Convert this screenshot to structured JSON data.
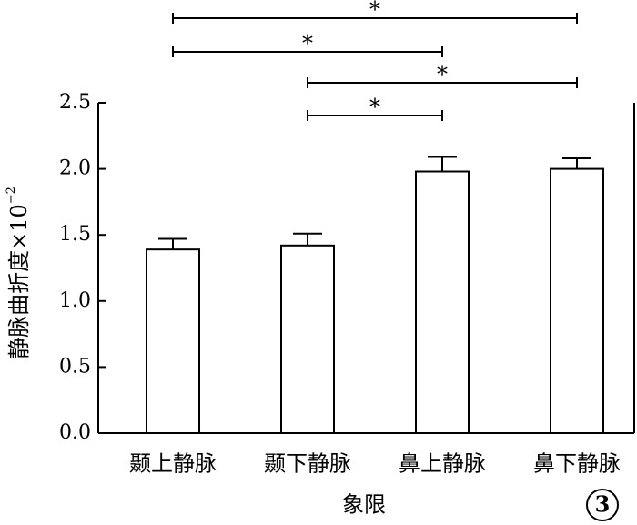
{
  "chart_data": {
    "type": "bar",
    "categories": [
      "颞上静脉",
      "颞下静脉",
      "鼻上静脉",
      "鼻下静脉"
    ],
    "values": [
      1.39,
      1.42,
      1.98,
      2.0
    ],
    "errors": [
      0.08,
      0.09,
      0.11,
      0.08
    ],
    "color": "#ffffff",
    "xlabel": "象限",
    "ylabel": "静脉曲折度×10",
    "ylabel_exponent": "−2",
    "ylim": [
      0,
      2.5
    ],
    "yticks": [
      {
        "value": 0,
        "label": "0.0"
      },
      {
        "value": 0.5,
        "label": "0.5"
      },
      {
        "value": 1,
        "label": "1.0"
      },
      {
        "value": 1.5,
        "label": "1.5"
      },
      {
        "value": 2,
        "label": "2.0"
      },
      {
        "value": 2.5,
        "label": "2.5"
      }
    ],
    "significance": [
      {
        "pair": [
          0,
          3
        ],
        "label": "*"
      },
      {
        "pair": [
          0,
          2
        ],
        "label": "*"
      },
      {
        "pair": [
          1,
          3
        ],
        "label": "*"
      },
      {
        "pair": [
          1,
          2
        ],
        "label": "*"
      }
    ],
    "annotation": "3"
  }
}
